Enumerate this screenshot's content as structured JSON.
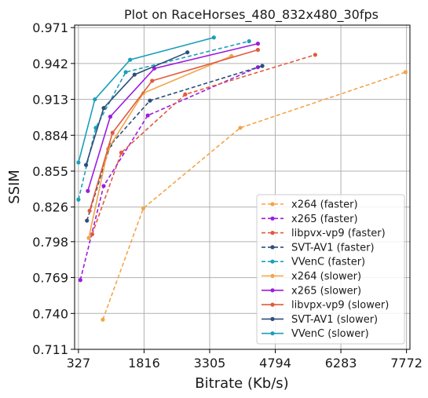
{
  "chart_data": {
    "type": "line",
    "title": "Plot on RaceHorses_480_832x480_30fps",
    "xlabel": "Bitrate (Kb/s)",
    "ylabel": "SSIM",
    "xlim": [
      240,
      7850
    ],
    "ylim": [
      0.711,
      0.973
    ],
    "xticks": [
      327,
      1816,
      3305,
      4794,
      6283,
      7772
    ],
    "xtick_labels": [
      "327",
      "1816",
      "3305",
      "4794",
      "6283",
      "7772"
    ],
    "yticks": [
      0.711,
      0.74,
      0.769,
      0.798,
      0.826,
      0.855,
      0.884,
      0.913,
      0.942,
      0.971
    ],
    "ytick_labels": [
      "0.711",
      "0.740",
      "0.769",
      "0.798",
      "0.826",
      "0.855",
      "0.884",
      "0.913",
      "0.942",
      "0.971"
    ],
    "grid": true,
    "legend_position": "bottom-right",
    "series": [
      {
        "name": "x264 (faster)",
        "color": "#f2a54a",
        "dash": "dashed",
        "x": [
          880,
          1800,
          4000,
          7750
        ],
        "y": [
          0.735,
          0.825,
          0.89,
          0.935
        ]
      },
      {
        "name": "x265 (faster)",
        "color": "#9b1ce0",
        "dash": "dashed",
        "x": [
          370,
          900,
          1900,
          4400
        ],
        "y": [
          0.767,
          0.843,
          0.9,
          0.939
        ]
      },
      {
        "name": "libpvx-vp9 (faster)",
        "color": "#e05a3e",
        "dash": "dashed",
        "x": [
          640,
          1300,
          2750,
          5700
        ],
        "y": [
          0.804,
          0.87,
          0.917,
          0.949
        ]
      },
      {
        "name": "SVT-AV1 (faster)",
        "color": "#2d4f7a",
        "dash": "dashed",
        "x": [
          520,
          1050,
          1950,
          4500
        ],
        "y": [
          0.815,
          0.876,
          0.912,
          0.94
        ]
      },
      {
        "name": "VVenC (faster)",
        "color": "#1aa0b8",
        "dash": "dashed",
        "x": [
          327,
          720,
          1400,
          4200
        ],
        "y": [
          0.832,
          0.89,
          0.935,
          0.96
        ]
      },
      {
        "name": "x264 (slower)",
        "color": "#f2a54a",
        "dash": "solid",
        "x": [
          560,
          1000,
          1800,
          3800
        ],
        "y": [
          0.801,
          0.873,
          0.918,
          0.948
        ]
      },
      {
        "name": "x265 (slower)",
        "color": "#9b1ce0",
        "dash": "solid",
        "x": [
          540,
          1050,
          2050,
          4400
        ],
        "y": [
          0.839,
          0.899,
          0.938,
          0.958
        ]
      },
      {
        "name": "libvpx-vp9 (slower)",
        "color": "#e05a3e",
        "dash": "solid",
        "x": [
          580,
          1100,
          2000,
          4400
        ],
        "y": [
          0.823,
          0.886,
          0.928,
          0.953
        ]
      },
      {
        "name": "SVT-AV1 (slower)",
        "color": "#2d4f7a",
        "dash": "solid",
        "x": [
          500,
          900,
          1600,
          2800
        ],
        "y": [
          0.86,
          0.906,
          0.933,
          0.951
        ]
      },
      {
        "name": "VVenC (slower)",
        "color": "#1aa0b8",
        "dash": "solid",
        "x": [
          327,
          700,
          1500,
          3400
        ],
        "y": [
          0.862,
          0.913,
          0.945,
          0.963
        ]
      }
    ]
  }
}
